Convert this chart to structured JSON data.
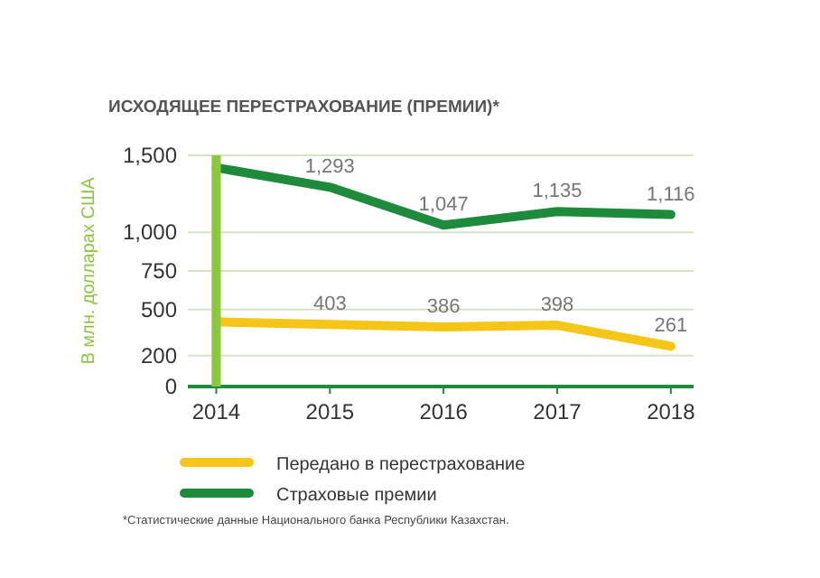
{
  "chart_data": {
    "type": "line",
    "title": "ИСХОДЯЩЕЕ ПЕРЕСТРАХОВАНИЕ (ПРЕМИИ)*",
    "ylabel": "В млн. долларах США",
    "x": [
      2014,
      2015,
      2016,
      2017,
      2018
    ],
    "xlim": [
      2013.75,
      2018.2
    ],
    "xticks": [
      2014,
      2015,
      2016,
      2017,
      2018
    ],
    "ylim": [
      0,
      1500
    ],
    "yticks": [
      0,
      {
        "value": 200,
        "label": "200"
      },
      500,
      750,
      {
        "value": 1000,
        "label": "1,000"
      },
      {
        "value": 1500,
        "label": "1,500"
      }
    ],
    "grid": "y",
    "legend": "bottom",
    "marker": "none",
    "line_style": "solid",
    "series": [
      {
        "name": "Передано в перестрахование",
        "color": "#f5c518",
        "values": [
          420,
          403,
          386,
          398,
          261
        ],
        "value_labels": [
          null,
          "403",
          "386",
          "398",
          "261"
        ]
      },
      {
        "name": "Страховые премии",
        "color": "#1e8a3c",
        "values": [
          1420,
          1293,
          1047,
          1135,
          1116
        ],
        "value_labels": [
          null,
          "1,293",
          "1,047",
          "1,135",
          "1,116"
        ]
      }
    ],
    "bands": [
      {
        "axis": "x",
        "from": 2013.96,
        "to": 2014.04,
        "color": "#8dc63f"
      }
    ],
    "annotations": [
      "*Статистические данные Национального банка Республики Казахстан."
    ]
  }
}
